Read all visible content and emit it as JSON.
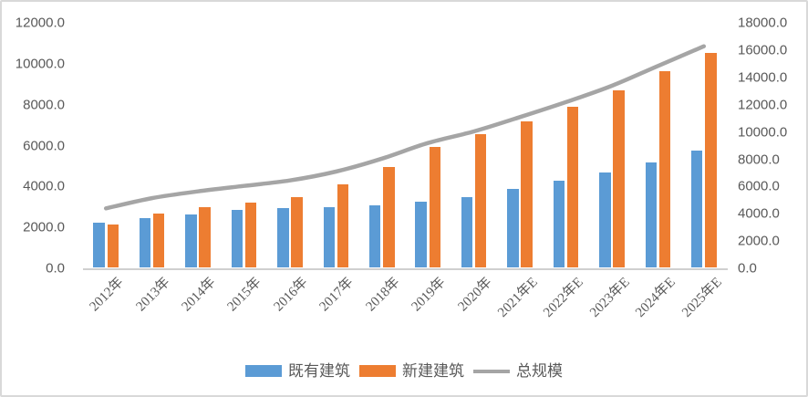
{
  "chart_data": {
    "type": "bar",
    "subtype": "grouped-bars-with-line-overlay",
    "categories": [
      "2012年",
      "2013年",
      "2014年",
      "2015年",
      "2016年",
      "2017年",
      "2018年",
      "2019年",
      "2020年",
      "2021年E",
      "2022年E",
      "2023年E",
      "2024年E",
      "2025年E"
    ],
    "series": [
      {
        "name": "既有建筑",
        "type": "bar",
        "axis": "left",
        "color": "#5B9BD5",
        "values": [
          2250,
          2450,
          2650,
          2850,
          2950,
          3000,
          3100,
          3250,
          3500,
          3900,
          4300,
          4700,
          5200,
          5750
        ]
      },
      {
        "name": "新建建筑",
        "type": "bar",
        "axis": "left",
        "color": "#ED7D31",
        "values": [
          2150,
          2700,
          3000,
          3200,
          3500,
          4100,
          4950,
          5950,
          6550,
          7200,
          7900,
          8700,
          9650,
          10550
        ]
      },
      {
        "name": "总规模",
        "type": "line",
        "axis": "right",
        "color": "#A5A5A5",
        "values": [
          4400,
          5150,
          5650,
          6050,
          6450,
          7100,
          8050,
          9200,
          10050,
          11100,
          12200,
          13400,
          14850,
          16300
        ]
      }
    ],
    "left_axis": {
      "min": 0,
      "max": 12000,
      "step": 2000,
      "tick_labels": [
        "0.0",
        "2000.0",
        "4000.0",
        "6000.0",
        "8000.0",
        "10000.0",
        "12000.0"
      ]
    },
    "right_axis": {
      "min": 0,
      "max": 18000,
      "step": 2000,
      "tick_labels": [
        "0.0",
        "2000.0",
        "4000.0",
        "6000.0",
        "8000.0",
        "10000.0",
        "12000.0",
        "14000.0",
        "16000.0",
        "18000.0"
      ]
    },
    "legend": {
      "position": "bottom",
      "items": [
        "既有建筑",
        "新建建筑",
        "总规模"
      ]
    },
    "grid": false,
    "title": "",
    "xlabel": "",
    "ylabel": ""
  },
  "colors": {
    "bar_blue": "#5B9BD5",
    "bar_orange": "#ED7D31",
    "line_gray": "#A5A5A5",
    "axis_text": "#595959",
    "axis_line": "#D0D0D0",
    "frame_border": "#D9D9D9",
    "background": "#FFFFFF"
  }
}
